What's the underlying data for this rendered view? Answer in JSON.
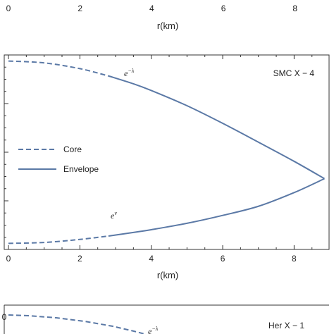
{
  "chart_data": [
    {
      "type": "line",
      "panel": "top-axis-fragment",
      "xlabel": "r(km)",
      "xticks": [
        "0",
        "2",
        "4",
        "6",
        "8"
      ],
      "xlim": [
        0,
        8.85
      ]
    },
    {
      "type": "line",
      "panel": "main",
      "label": "SMC X − 4",
      "xlabel": "r(km)",
      "xticks": [
        "0",
        "2",
        "4",
        "6",
        "8"
      ],
      "xlim": [
        0,
        8.9
      ],
      "ylim": [
        0.38,
        1.02
      ],
      "legend": {
        "placement": "center-left",
        "entries": [
          {
            "name": "Core",
            "style": "dashed"
          },
          {
            "name": "Envelope",
            "style": "solid"
          }
        ]
      },
      "color": "#5b79a6",
      "annotations": [
        {
          "base": "e",
          "sup": "−λ",
          "x": 3.15,
          "y": 0.925
        },
        {
          "base": "e",
          "sup": "ν",
          "x": 2.85,
          "y": 0.485
        }
      ],
      "core_radius": 2.8,
      "series": [
        {
          "name": "e^-λ",
          "x": [
            0,
            1,
            2,
            2.8,
            3.5,
            4,
            5,
            6,
            7,
            8,
            8.85
          ],
          "y": [
            1.0,
            0.994,
            0.975,
            0.951,
            0.925,
            0.903,
            0.853,
            0.795,
            0.733,
            0.67,
            0.613
          ]
        },
        {
          "name": "e^ν",
          "x": [
            0,
            1,
            2,
            2.8,
            3.5,
            4,
            5,
            6,
            7,
            8,
            8.85
          ],
          "y": [
            0.4,
            0.403,
            0.413,
            0.424,
            0.436,
            0.445,
            0.466,
            0.492,
            0.522,
            0.567,
            0.613
          ]
        }
      ]
    },
    {
      "type": "line",
      "panel": "bottom-fragment",
      "label": "Her X − 1",
      "ytick_partial": "0",
      "annotation": {
        "base": "e",
        "sup": "−λ"
      }
    }
  ]
}
